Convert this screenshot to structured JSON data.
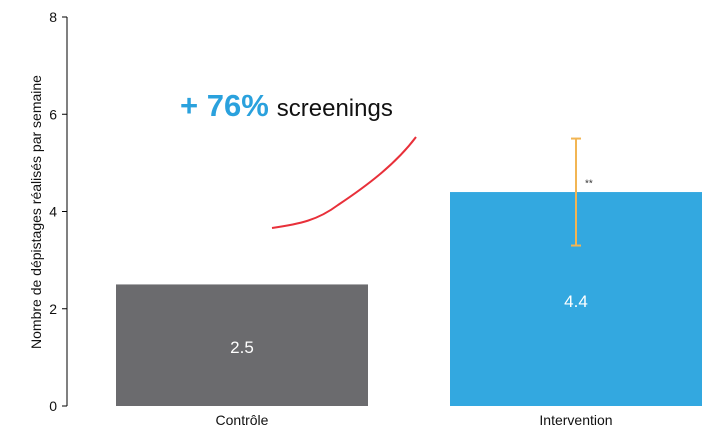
{
  "chart_data": {
    "type": "bar",
    "categories": [
      "Contrôle",
      "Intervention"
    ],
    "values": [
      2.5,
      4.4
    ],
    "value_labels": [
      "2.5",
      "4.4"
    ],
    "colors": [
      "#6b6b6e",
      "#33a8e0"
    ],
    "error_bar": {
      "category": "Intervention",
      "low": 3.3,
      "high": 5.5,
      "color": "#f2b553"
    },
    "significance": {
      "category": "Intervention",
      "marker": "**"
    },
    "ylabel": "Nombre de dépistages réalisés par semaine",
    "xlabel": "",
    "ylim": [
      0,
      8
    ],
    "yticks": [
      "0",
      "2",
      "4",
      "6",
      "8"
    ],
    "grid": false,
    "annotation": {
      "highlight": "+ 76%",
      "text": "screenings",
      "highlight_color": "#2aa1dd",
      "arrow_color": "#e8303a"
    }
  }
}
